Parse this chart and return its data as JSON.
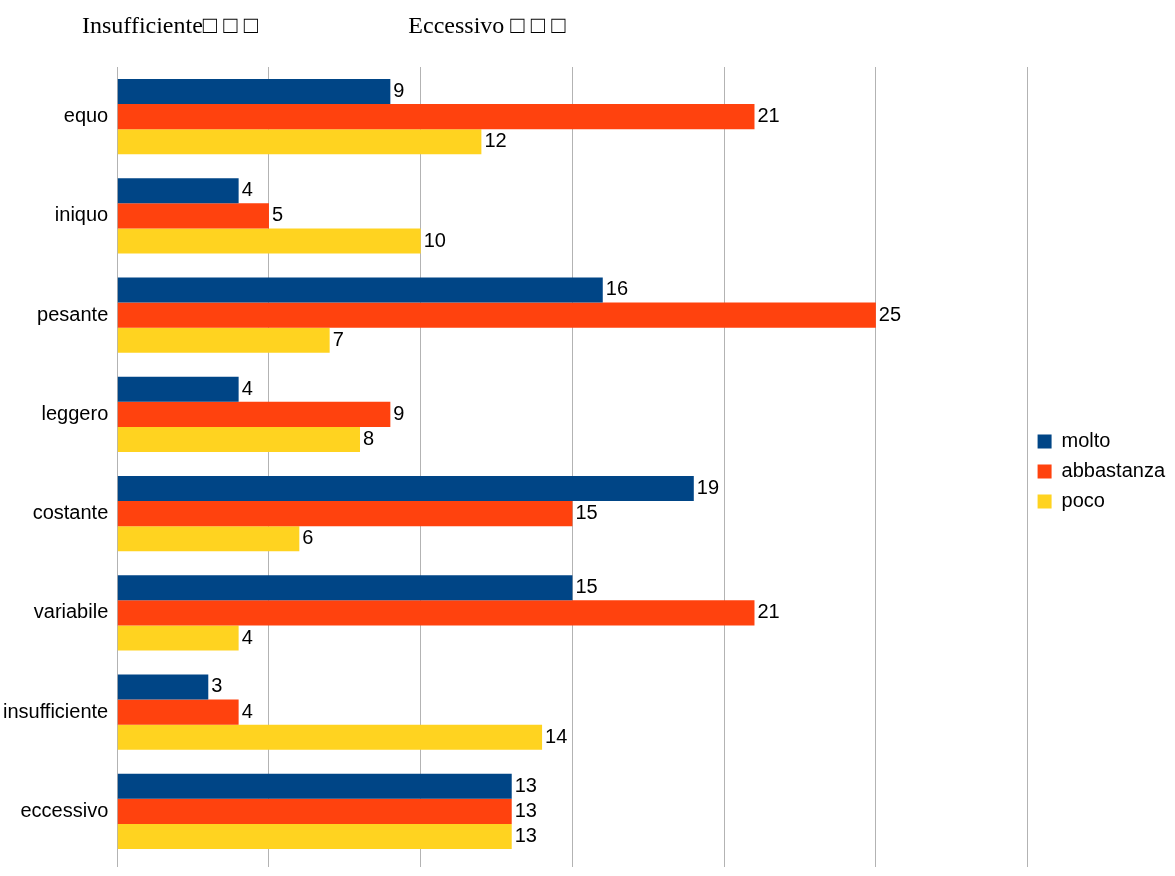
{
  "chart_data": {
    "type": "bar",
    "orientation": "horizontal",
    "annotations": [
      "Insufficiente□ □ □",
      "Eccessivo □ □ □"
    ],
    "categories": [
      "equo",
      "iniquo",
      "pesante",
      "leggero",
      "costante",
      "variabile",
      "insufficiente",
      "eccessivo"
    ],
    "series": [
      {
        "name": "molto",
        "color": "#004586",
        "values": [
          9,
          4,
          16,
          4,
          19,
          15,
          3,
          13
        ]
      },
      {
        "name": "abbastanza",
        "color": "#ff420e",
        "values": [
          21,
          5,
          25,
          9,
          15,
          21,
          4,
          13
        ]
      },
      {
        "name": "poco",
        "color": "#ffd320",
        "values": [
          12,
          10,
          7,
          8,
          6,
          4,
          14,
          13
        ]
      }
    ],
    "xlim": [
      0,
      30
    ],
    "xticks": [
      {
        "value": 0,
        "label": null
      },
      {
        "value": 5,
        "label": null
      },
      {
        "value": 10,
        "label": null
      },
      {
        "value": 15,
        "label": null
      },
      {
        "value": 20,
        "label": null
      },
      {
        "value": 25,
        "label": null
      },
      {
        "value": 30,
        "label": null
      }
    ],
    "tick_labels": "y",
    "grid": "x",
    "legend": "right",
    "data_labels": true
  }
}
